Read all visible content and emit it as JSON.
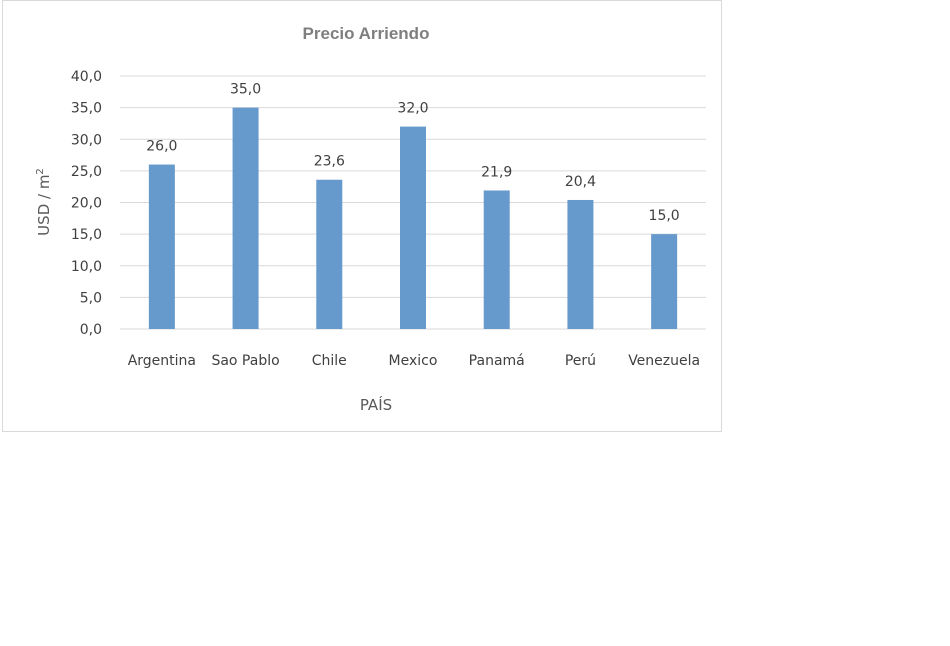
{
  "chart_data": {
    "type": "bar",
    "title": "Precio Arriendo",
    "xlabel": "PAÍS",
    "ylabel": "USD / m",
    "ylabel_superscript": "2",
    "categories": [
      "Argentina",
      "Sao Pablo",
      "Chile",
      "Mexico",
      "Panamá",
      "Perú",
      "Venezuela"
    ],
    "values": [
      26.0,
      35.0,
      23.6,
      32.0,
      21.9,
      20.4,
      15.0
    ],
    "value_labels": [
      "26,0",
      "35,0",
      "23,6",
      "32,0",
      "21,9",
      "20,4",
      "15,0"
    ],
    "ylim": [
      0,
      40
    ],
    "yticks": [
      0,
      5,
      10,
      15,
      20,
      25,
      30,
      35,
      40
    ],
    "ytick_labels": [
      "0,0",
      "5,0",
      "10,0",
      "15,0",
      "20,0",
      "25,0",
      "30,0",
      "35,0",
      "40,0"
    ],
    "grid": true,
    "bar_color": "#6699cc",
    "gridline_color": "#d9d9d9"
  }
}
